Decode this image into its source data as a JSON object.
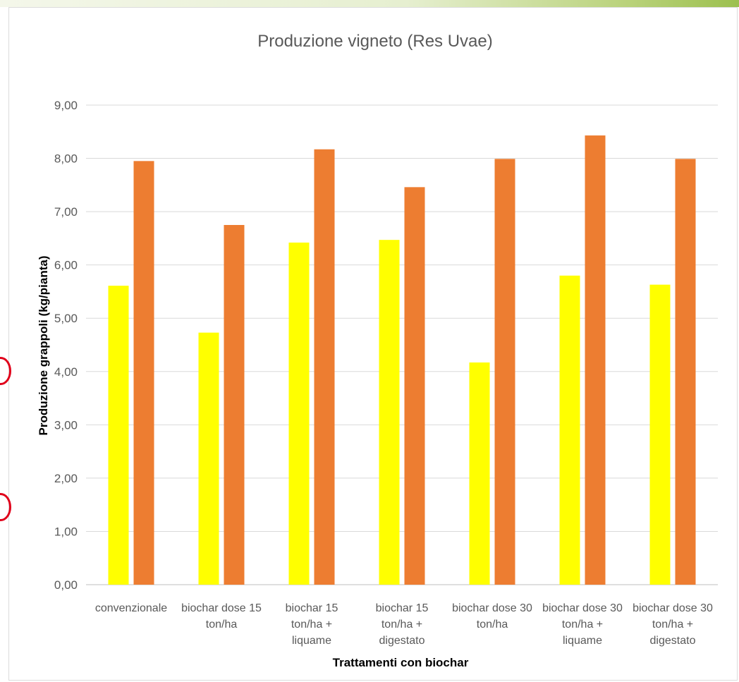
{
  "colors": {
    "series_1": "#FFFF00",
    "series_2": "#ED7D31",
    "gridline": "#D9D9D9",
    "annotation_circle": "#E0001A"
  },
  "chart_data": {
    "type": "bar",
    "title": "Produzione vigneto (Res Uvae)",
    "xlabel": "Trattamenti con biochar",
    "ylabel": "Produzione grappoli (kg/pianta)",
    "ylim": [
      0,
      9
    ],
    "ytick_step": 1,
    "yticks": [
      "0,00",
      "1,00",
      "2,00",
      "3,00",
      "4,00",
      "5,00",
      "6,00",
      "7,00",
      "8,00",
      "9,00"
    ],
    "grid": true,
    "legend": "none",
    "categories": [
      [
        "convenzionale"
      ],
      [
        "biochar dose 15",
        "ton/ha"
      ],
      [
        "biochar 15",
        "ton/ha +",
        "liquame"
      ],
      [
        "biochar 15",
        "ton/ha +",
        "digestato"
      ],
      [
        "biochar dose 30",
        "ton/ha"
      ],
      [
        "biochar dose 30",
        "ton/ha +",
        "liquame"
      ],
      [
        "biochar dose 30",
        "ton/ha +",
        "digestato"
      ]
    ],
    "series": [
      {
        "values": [
          5.61,
          4.73,
          6.42,
          6.47,
          4.17,
          5.8,
          5.63
        ]
      },
      {
        "values": [
          7.95,
          6.75,
          8.17,
          7.46,
          7.99,
          8.43,
          7.99
        ]
      }
    ]
  }
}
